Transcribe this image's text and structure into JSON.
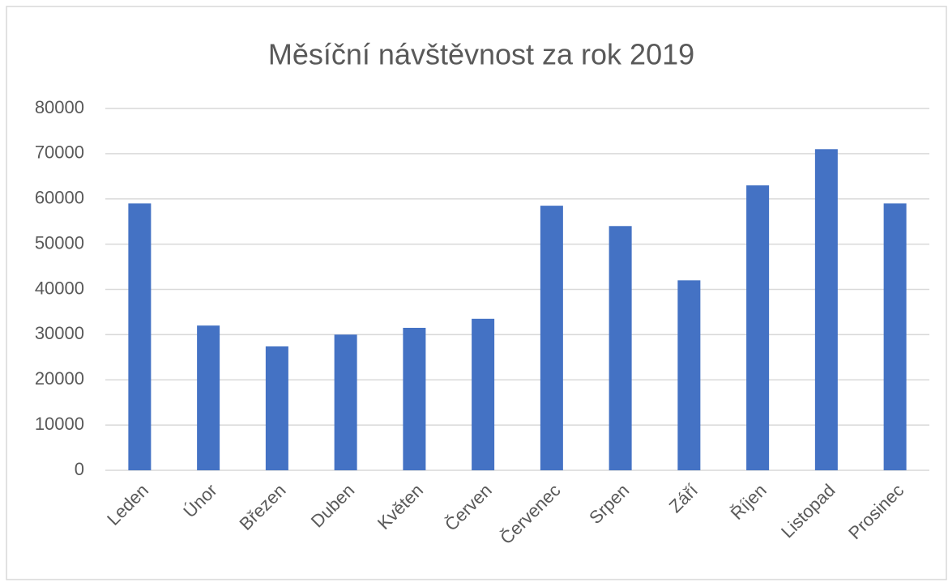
{
  "chart_data": {
    "type": "bar",
    "title": "Měsíční návštěvnost za rok 2019",
    "categories": [
      "Leden",
      "Únor",
      "Březen",
      "Duben",
      "Květen",
      "Červen",
      "Červenec",
      "Srpen",
      "Září",
      "Říjen",
      "Listopad",
      "Prosinec"
    ],
    "values": [
      59000,
      32000,
      27400,
      30000,
      31500,
      33500,
      58500,
      54000,
      42000,
      63000,
      71000,
      59000
    ],
    "color": "#4472c4",
    "ylim": [
      0,
      80000
    ],
    "yticks": [
      0,
      10000,
      20000,
      30000,
      40000,
      50000,
      60000,
      70000,
      80000
    ],
    "grid": true
  }
}
